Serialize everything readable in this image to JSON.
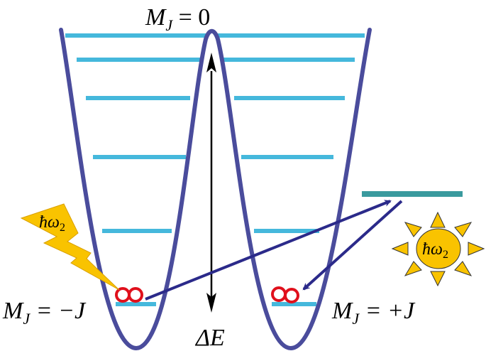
{
  "labels": {
    "top": {
      "main": "M",
      "sub": "J",
      "rest": " = 0"
    },
    "left": {
      "main": "M",
      "sub": "J",
      "rest": " = −J"
    },
    "right": {
      "main": "M",
      "sub": "J",
      "rest": " = +J"
    },
    "delta_e": "ΔE",
    "lightning_photon": {
      "main": "ħω",
      "sub": "2"
    },
    "sun_photon": {
      "main": "ħω",
      "sub": "2"
    }
  },
  "colors": {
    "potential_curve": "#4a4c9c",
    "energy_levels": "#45b8dc",
    "excited_level": "#3a9a9e",
    "transition_arrows": "#2b2a8a",
    "particles": "#e0101c",
    "photon_fill": "#f9c300"
  },
  "icons": [
    "lightning-icon",
    "sun-icon"
  ]
}
